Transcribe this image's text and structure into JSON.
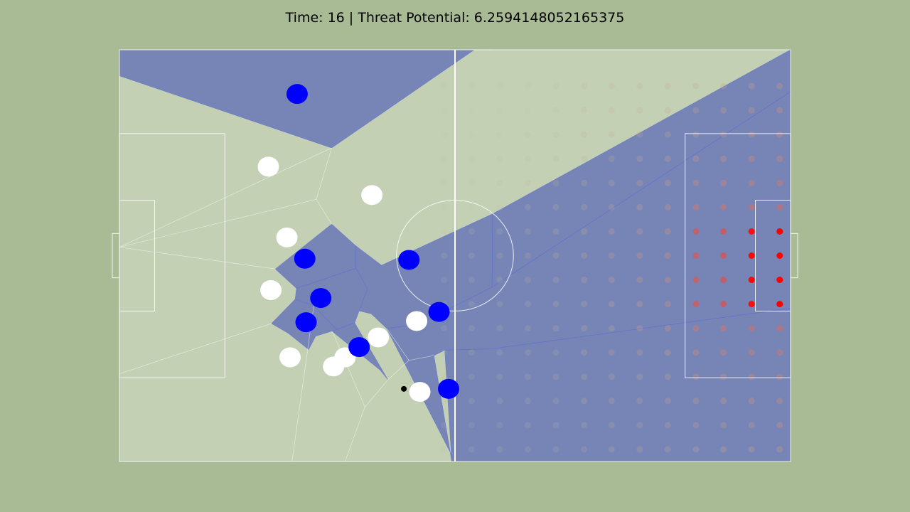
{
  "title": "Time: 16 | Threat Potential: 6.2594148052165375",
  "colors": {
    "figure_bg": "#a8bb94",
    "pitch_bg": "#c3d0b3",
    "team_region": "#7785b6",
    "blue_player": "#0000ff",
    "white_player": "#ffffff",
    "ball": "#000000",
    "threat_low": "#bcc7ad",
    "threat_high": "#ff0000"
  },
  "chart_data": {
    "type": "scatter",
    "title": "Time: 16 | Threat Potential: 6.2594148052165375",
    "time": 16,
    "threat_potential": 6.2594148052165375,
    "pitch": {
      "length": 105,
      "width": 68
    },
    "ball": [
      44.5,
      12.0
    ],
    "blue_team": [
      [
        27.8,
        60.7
      ],
      [
        29.0,
        33.5
      ],
      [
        31.5,
        27.0
      ],
      [
        29.2,
        23.0
      ],
      [
        37.5,
        18.9
      ],
      [
        45.3,
        33.3
      ],
      [
        50.0,
        24.7
      ],
      [
        51.5,
        12.0
      ]
    ],
    "white_team": [
      [
        23.3,
        48.7
      ],
      [
        39.5,
        44.0
      ],
      [
        26.2,
        37.0
      ],
      [
        23.7,
        28.3
      ],
      [
        26.7,
        17.2
      ],
      [
        33.5,
        15.7
      ],
      [
        35.3,
        17.2
      ],
      [
        40.5,
        20.5
      ],
      [
        46.5,
        23.2
      ],
      [
        47.0,
        11.5
      ]
    ],
    "blue_regions": [
      [
        [
          0.0,
          68.0
        ],
        [
          55.5,
          68.0
        ],
        [
          33.2,
          51.8
        ],
        [
          0.0,
          63.7
        ]
      ],
      [
        [
          37.0,
          35.6
        ],
        [
          41.0,
          32.4
        ],
        [
          58.4,
          40.9
        ],
        [
          58.3,
          28.8
        ],
        [
          46.7,
          22.6
        ],
        [
          41.8,
          22.0
        ],
        [
          39.4,
          24.4
        ],
        [
          37.0,
          25.0
        ]
      ],
      [
        [
          33.2,
          39.2
        ],
        [
          37.0,
          35.6
        ],
        [
          37.0,
          31.9
        ],
        [
          27.7,
          28.6
        ],
        [
          24.4,
          31.8
        ]
      ],
      [
        [
          27.7,
          28.6
        ],
        [
          37.0,
          31.9
        ],
        [
          38.8,
          28.6
        ],
        [
          36.8,
          22.9
        ],
        [
          34.0,
          21.8
        ],
        [
          30.4,
          25.7
        ],
        [
          27.5,
          26.8
        ]
      ],
      [
        [
          27.5,
          26.8
        ],
        [
          30.4,
          25.7
        ],
        [
          34.0,
          21.8
        ],
        [
          30.7,
          20.7
        ],
        [
          29.6,
          18.5
        ],
        [
          26.4,
          21.2
        ],
        [
          23.8,
          22.8
        ]
      ],
      [
        [
          34.0,
          21.8
        ],
        [
          36.8,
          22.9
        ],
        [
          42.0,
          13.5
        ],
        [
          40.8,
          15.1
        ],
        [
          33.3,
          21.5
        ],
        [
          34.0,
          21.8
        ]
      ],
      [
        [
          41.8,
          22.0
        ],
        [
          46.7,
          22.6
        ],
        [
          58.3,
          28.8
        ],
        [
          105.0,
          61.1
        ],
        [
          105.0,
          25.3
        ],
        [
          58.3,
          18.6
        ],
        [
          50.9,
          18.4
        ],
        [
          49.2,
          17.5
        ],
        [
          52.0,
          0.0
        ],
        [
          52.5,
          0.0
        ]
      ],
      [
        [
          58.4,
          40.9
        ],
        [
          58.3,
          28.8
        ],
        [
          105.0,
          61.1
        ],
        [
          105.0,
          68.0
        ],
        [
          58.3,
          68.0
        ],
        [
          58.3,
          68.0
        ],
        [
          105.0,
          68.0
        ]
      ],
      [
        [
          50.9,
          18.4
        ],
        [
          52.0,
          0.0
        ],
        [
          105.0,
          0.0
        ],
        [
          105.0,
          25.3
        ],
        [
          58.3,
          18.6
        ],
        [
          50.9,
          18.4
        ]
      ]
    ],
    "threat_grid": {
      "x": [
        50.8,
        55.1,
        59.5,
        63.9,
        68.3,
        72.7,
        77.0,
        81.4,
        85.8,
        90.2,
        94.5,
        98.9,
        103.3
      ],
      "y": [
        62.0,
        58.0,
        54.0,
        50.0,
        46.0,
        42.0,
        38.0,
        34.0,
        30.0,
        26.0,
        22.0,
        18.0,
        14.0,
        10.0,
        6.0,
        2.0
      ],
      "values": [
        [
          0.0,
          0.0,
          0.03,
          0.03,
          0.05,
          0.08,
          0.1,
          0.12,
          0.14,
          0.17,
          0.2,
          0.22,
          0.24
        ],
        [
          0.0,
          0.0,
          0.03,
          0.04,
          0.06,
          0.09,
          0.11,
          0.13,
          0.15,
          0.18,
          0.21,
          0.24,
          0.26
        ],
        [
          0.01,
          0.02,
          0.04,
          0.05,
          0.07,
          0.1,
          0.12,
          0.15,
          0.18,
          0.21,
          0.24,
          0.27,
          0.29
        ],
        [
          0.02,
          0.03,
          0.05,
          0.06,
          0.08,
          0.11,
          0.13,
          0.16,
          0.2,
          0.24,
          0.27,
          0.3,
          0.32
        ],
        [
          0.02,
          0.03,
          0.05,
          0.07,
          0.09,
          0.12,
          0.15,
          0.18,
          0.22,
          0.3,
          0.33,
          0.36,
          0.38
        ],
        [
          0.02,
          0.04,
          0.06,
          0.08,
          0.1,
          0.13,
          0.16,
          0.2,
          0.25,
          0.4,
          0.42,
          0.45,
          0.47
        ],
        [
          0.03,
          0.04,
          0.06,
          0.08,
          0.11,
          0.14,
          0.17,
          0.22,
          0.28,
          0.6,
          0.62,
          0.95,
          1.0
        ],
        [
          0.03,
          0.04,
          0.06,
          0.09,
          0.11,
          0.14,
          0.18,
          0.23,
          0.29,
          0.58,
          0.62,
          0.98,
          1.0
        ],
        [
          0.03,
          0.04,
          0.06,
          0.09,
          0.11,
          0.14,
          0.18,
          0.23,
          0.29,
          0.58,
          0.62,
          0.98,
          1.0
        ],
        [
          0.03,
          0.04,
          0.06,
          0.08,
          0.11,
          0.14,
          0.17,
          0.22,
          0.28,
          0.6,
          0.62,
          0.95,
          1.0
        ],
        [
          0.02,
          0.04,
          0.06,
          0.08,
          0.1,
          0.13,
          0.16,
          0.2,
          0.25,
          0.4,
          0.42,
          0.45,
          0.47
        ],
        [
          0.02,
          0.03,
          0.05,
          0.07,
          0.09,
          0.12,
          0.15,
          0.18,
          0.22,
          0.3,
          0.33,
          0.36,
          0.38
        ],
        [
          0.02,
          0.03,
          0.05,
          0.06,
          0.08,
          0.11,
          0.13,
          0.16,
          0.2,
          0.24,
          0.27,
          0.3,
          0.32
        ],
        [
          0.01,
          0.02,
          0.04,
          0.05,
          0.07,
          0.1,
          0.12,
          0.15,
          0.18,
          0.21,
          0.24,
          0.27,
          0.29
        ],
        [
          0.0,
          0.0,
          0.03,
          0.04,
          0.06,
          0.09,
          0.11,
          0.13,
          0.15,
          0.18,
          0.21,
          0.24,
          0.26
        ],
        [
          0.0,
          0.0,
          0.03,
          0.03,
          0.05,
          0.08,
          0.1,
          0.12,
          0.14,
          0.17,
          0.2,
          0.22,
          0.24
        ]
      ]
    },
    "grid": false,
    "legend": "none"
  }
}
